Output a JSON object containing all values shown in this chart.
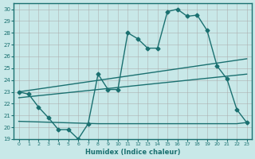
{
  "xlabel": "Humidex (Indice chaleur)",
  "ylabel": "",
  "bg_color": "#c8e8e8",
  "grid_color": "#aaaaaa",
  "line_color": "#1a7070",
  "xlim": [
    -0.5,
    23.5
  ],
  "ylim": [
    19,
    30.5
  ],
  "xticks": [
    0,
    1,
    2,
    3,
    4,
    5,
    6,
    7,
    8,
    9,
    10,
    11,
    12,
    13,
    14,
    15,
    16,
    17,
    18,
    19,
    20,
    21,
    22,
    23
  ],
  "yticks": [
    19,
    20,
    21,
    22,
    23,
    24,
    25,
    26,
    27,
    28,
    29,
    30
  ],
  "series1_x": [
    0,
    1,
    2,
    3,
    4,
    5,
    6,
    7,
    8,
    9,
    10,
    11,
    12,
    13,
    14,
    15,
    16,
    17,
    18,
    19,
    20,
    21,
    22,
    23
  ],
  "series1_y": [
    23.0,
    22.8,
    21.7,
    20.8,
    19.8,
    19.8,
    19.0,
    20.3,
    24.5,
    23.2,
    23.2,
    28.0,
    27.5,
    26.7,
    26.7,
    29.8,
    30.0,
    29.4,
    29.5,
    28.2,
    25.2,
    24.1,
    21.5,
    20.4
  ],
  "series2_x": [
    0,
    23
  ],
  "series2_y": [
    23.0,
    25.8
  ],
  "series3_x": [
    0,
    23
  ],
  "series3_y": [
    22.5,
    24.5
  ],
  "series4_x": [
    0,
    8,
    9,
    10,
    11,
    12,
    13,
    14,
    15,
    16,
    17,
    18,
    19,
    20,
    21,
    22,
    23
  ],
  "series4_y": [
    20.5,
    20.3,
    20.3,
    20.3,
    20.3,
    20.3,
    20.3,
    20.3,
    20.3,
    20.3,
    20.3,
    20.3,
    20.3,
    20.3,
    20.3,
    20.3,
    20.4
  ]
}
